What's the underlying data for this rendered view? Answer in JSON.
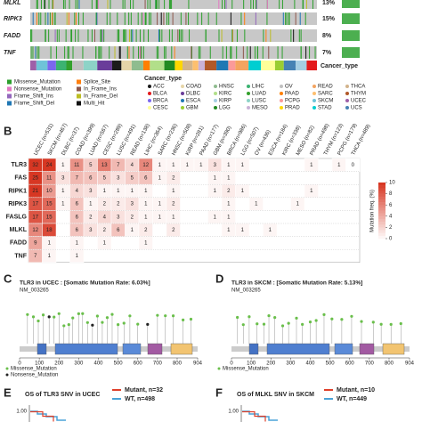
{
  "oncoprint": {
    "genes": [
      "MLKL",
      "RIPK3",
      "FADD",
      "TNF"
    ],
    "percent_labels": [
      "13%",
      "15%",
      "8%",
      "7%"
    ],
    "track_label": "Cancer_type"
  },
  "mutation_legend": [
    {
      "name": "Missense_Mutation",
      "color": "#2ca02c"
    },
    {
      "name": "Nonsense_Mutation",
      "color": "#e377c2"
    },
    {
      "name": "Frame_Shift_Ins",
      "color": "#9467bd"
    },
    {
      "name": "Frame_Shift_Del",
      "color": "#1f77b4"
    },
    {
      "name": "Splice_Site",
      "color": "#ff7f0e"
    },
    {
      "name": "In_Frame_Ins",
      "color": "#8c564b"
    },
    {
      "name": "In_Frame_Del",
      "color": "#bcbd22"
    },
    {
      "name": "Multi_Hit",
      "color": "#111111"
    }
  ],
  "cancer_legend": {
    "title": "Cancer_type",
    "items": [
      {
        "name": "ACC",
        "color": "#1b1b1b"
      },
      {
        "name": "COAD",
        "color": "#e6d5a8"
      },
      {
        "name": "HNSC",
        "color": "#8fbc8f"
      },
      {
        "name": "LIHC",
        "color": "#3cb371"
      },
      {
        "name": "OV",
        "color": "#c0c0c0"
      },
      {
        "name": "READ",
        "color": "#f4a460"
      },
      {
        "name": "THCA",
        "color": "#d2b48c"
      },
      {
        "name": "BLCA",
        "color": "#e31a1c"
      },
      {
        "name": "DLBC",
        "color": "#6a3d9a"
      },
      {
        "name": "KIRC",
        "color": "#b2df8a"
      },
      {
        "name": "LUAD",
        "color": "#33a02c"
      },
      {
        "name": "PAAD",
        "color": "#ff7f00"
      },
      {
        "name": "SARC",
        "color": "#fdbf6f"
      },
      {
        "name": "THYM",
        "color": "#b15928"
      },
      {
        "name": "BRCA",
        "color": "#7b68ee"
      },
      {
        "name": "ESCA",
        "color": "#1f78b4"
      },
      {
        "name": "KIRP",
        "color": "#a6cee3"
      },
      {
        "name": "LUSC",
        "color": "#8dd3c7"
      },
      {
        "name": "PCPG",
        "color": "#fb9a99"
      },
      {
        "name": "SKCM",
        "color": "#6fc3d8"
      },
      {
        "name": "UCEC",
        "color": "#9e5fa8"
      },
      {
        "name": "CESC",
        "color": "#ffff99"
      },
      {
        "name": "GBM",
        "color": "#9acd32"
      },
      {
        "name": "LGG",
        "color": "#228b22"
      },
      {
        "name": "MESO",
        "color": "#cab2d6"
      },
      {
        "name": "PRAD",
        "color": "#ffd700"
      },
      {
        "name": "STAD",
        "color": "#00ced1"
      },
      {
        "name": "UCS",
        "color": "#4682b4"
      }
    ]
  },
  "panel_b": {
    "label": "B",
    "columns": [
      "UCEC (n=531)",
      "SKCM (n=467)",
      "DLBC (n=37)",
      "COAD (n=399)",
      "LUAD (n=567)",
      "CESC (n=289)",
      "LUSC (n=491)",
      "READ (n=138)",
      "LIHC (n=364)",
      "SARC (n=236)",
      "HNSC (n=508)",
      "KIRP (n=281)",
      "PAAD (n=177)",
      "GBM (n=390)",
      "BRCA (n=986)",
      "LGG (n=507)",
      "OV (n=436)",
      "ESCA (n=184)",
      "KIRC (n=338)",
      "MESO (n=82)",
      "PRAD (n=498)",
      "THYM (n=123)",
      "PCPG (n=179)",
      "THCA (n=489)"
    ],
    "rows": [
      {
        "gene": "TLR3",
        "values": [
          32,
          24,
          1,
          11,
          5,
          13,
          7,
          4,
          12,
          1,
          1,
          1,
          1,
          3,
          1,
          1,
          null,
          null,
          null,
          null,
          1,
          null,
          1,
          0
        ]
      },
      {
        "gene": "FAS",
        "values": [
          25,
          11,
          3,
          7,
          6,
          5,
          3,
          5,
          6,
          1,
          2,
          null,
          null,
          1,
          1,
          null,
          null,
          null,
          null,
          null,
          null,
          null,
          null,
          null
        ]
      },
      {
        "gene": "RIPK1",
        "values": [
          21,
          10,
          1,
          4,
          3,
          1,
          1,
          1,
          1,
          null,
          1,
          null,
          null,
          1,
          2,
          1,
          null,
          null,
          null,
          null,
          1,
          null,
          null,
          null
        ]
      },
      {
        "gene": "RIPK3",
        "values": [
          17,
          15,
          1,
          6,
          1,
          2,
          2,
          3,
          1,
          1,
          2,
          null,
          null,
          null,
          1,
          null,
          1,
          null,
          null,
          1,
          null,
          null,
          null,
          null
        ]
      },
      {
        "gene": "FASLG",
        "values": [
          17,
          15,
          null,
          6,
          2,
          4,
          3,
          2,
          1,
          1,
          1,
          null,
          null,
          1,
          1,
          null,
          null,
          null,
          null,
          null,
          null,
          null,
          null,
          null
        ]
      },
      {
        "gene": "MLKL",
        "values": [
          12,
          18,
          null,
          6,
          3,
          2,
          6,
          1,
          2,
          null,
          2,
          null,
          null,
          null,
          1,
          1,
          null,
          1,
          null,
          null,
          null,
          null,
          null,
          null
        ]
      },
      {
        "gene": "FADD",
        "values": [
          9,
          1,
          null,
          1,
          null,
          1,
          null,
          null,
          1,
          null,
          null,
          null,
          null,
          null,
          null,
          null,
          null,
          null,
          null,
          null,
          null,
          null,
          null,
          null
        ]
      },
      {
        "gene": "TNF",
        "values": [
          7,
          1,
          null,
          1,
          null,
          null,
          null,
          null,
          null,
          null,
          null,
          null,
          null,
          null,
          null,
          null,
          null,
          null,
          null,
          null,
          null,
          null,
          null,
          null
        ]
      }
    ],
    "colorbar": {
      "title": "Mutation freq. (%)",
      "ticks": [
        10,
        8,
        6,
        4,
        2,
        0
      ],
      "lim": [
        0,
        10
      ]
    }
  },
  "panel_c": {
    "label": "C",
    "title": "TLR3 in UCEC : [Somatic Mutation Rate: 6.03%]",
    "transcript": "NM_003265",
    "legend": [
      "Missense_Mutation",
      "Nonsense_Mutation"
    ],
    "xlim": [
      0,
      904
    ],
    "xticks": [
      0,
      100,
      200,
      300,
      400,
      500,
      600,
      700,
      800,
      904
    ],
    "positions": [
      40,
      70,
      95,
      120,
      150,
      175,
      200,
      225,
      250,
      270,
      300,
      320,
      345,
      370,
      395,
      420,
      445,
      470,
      500,
      530,
      560,
      600,
      650,
      700,
      740,
      780,
      830,
      870
    ]
  },
  "panel_d": {
    "label": "D",
    "title": "TLR3 in SKCM : [Somatic Mutation Rate: 5.13%]",
    "transcript": "NM_003265",
    "legend": [
      "Missense_Mutation"
    ],
    "xlim": [
      0,
      904
    ],
    "xticks": [
      0,
      100,
      200,
      300,
      400,
      500,
      600,
      700,
      800,
      904
    ],
    "positions": [
      30,
      60,
      90,
      130,
      165,
      190,
      220,
      260,
      290,
      330,
      360,
      400,
      430,
      470,
      510,
      560,
      610,
      660,
      720,
      760,
      810,
      860
    ]
  },
  "panel_e": {
    "label": "E",
    "title": "OS of TLR3 SNV in UCEC",
    "legend": [
      "Mutant, n=32",
      "WT, n=498"
    ],
    "ytick": "1.00"
  },
  "panel_f": {
    "label": "F",
    "title": "OS of MLKL SNV in SKCM",
    "legend": [
      "Mutant, n=10",
      "WT, n=449"
    ],
    "ytick": "1.00"
  }
}
